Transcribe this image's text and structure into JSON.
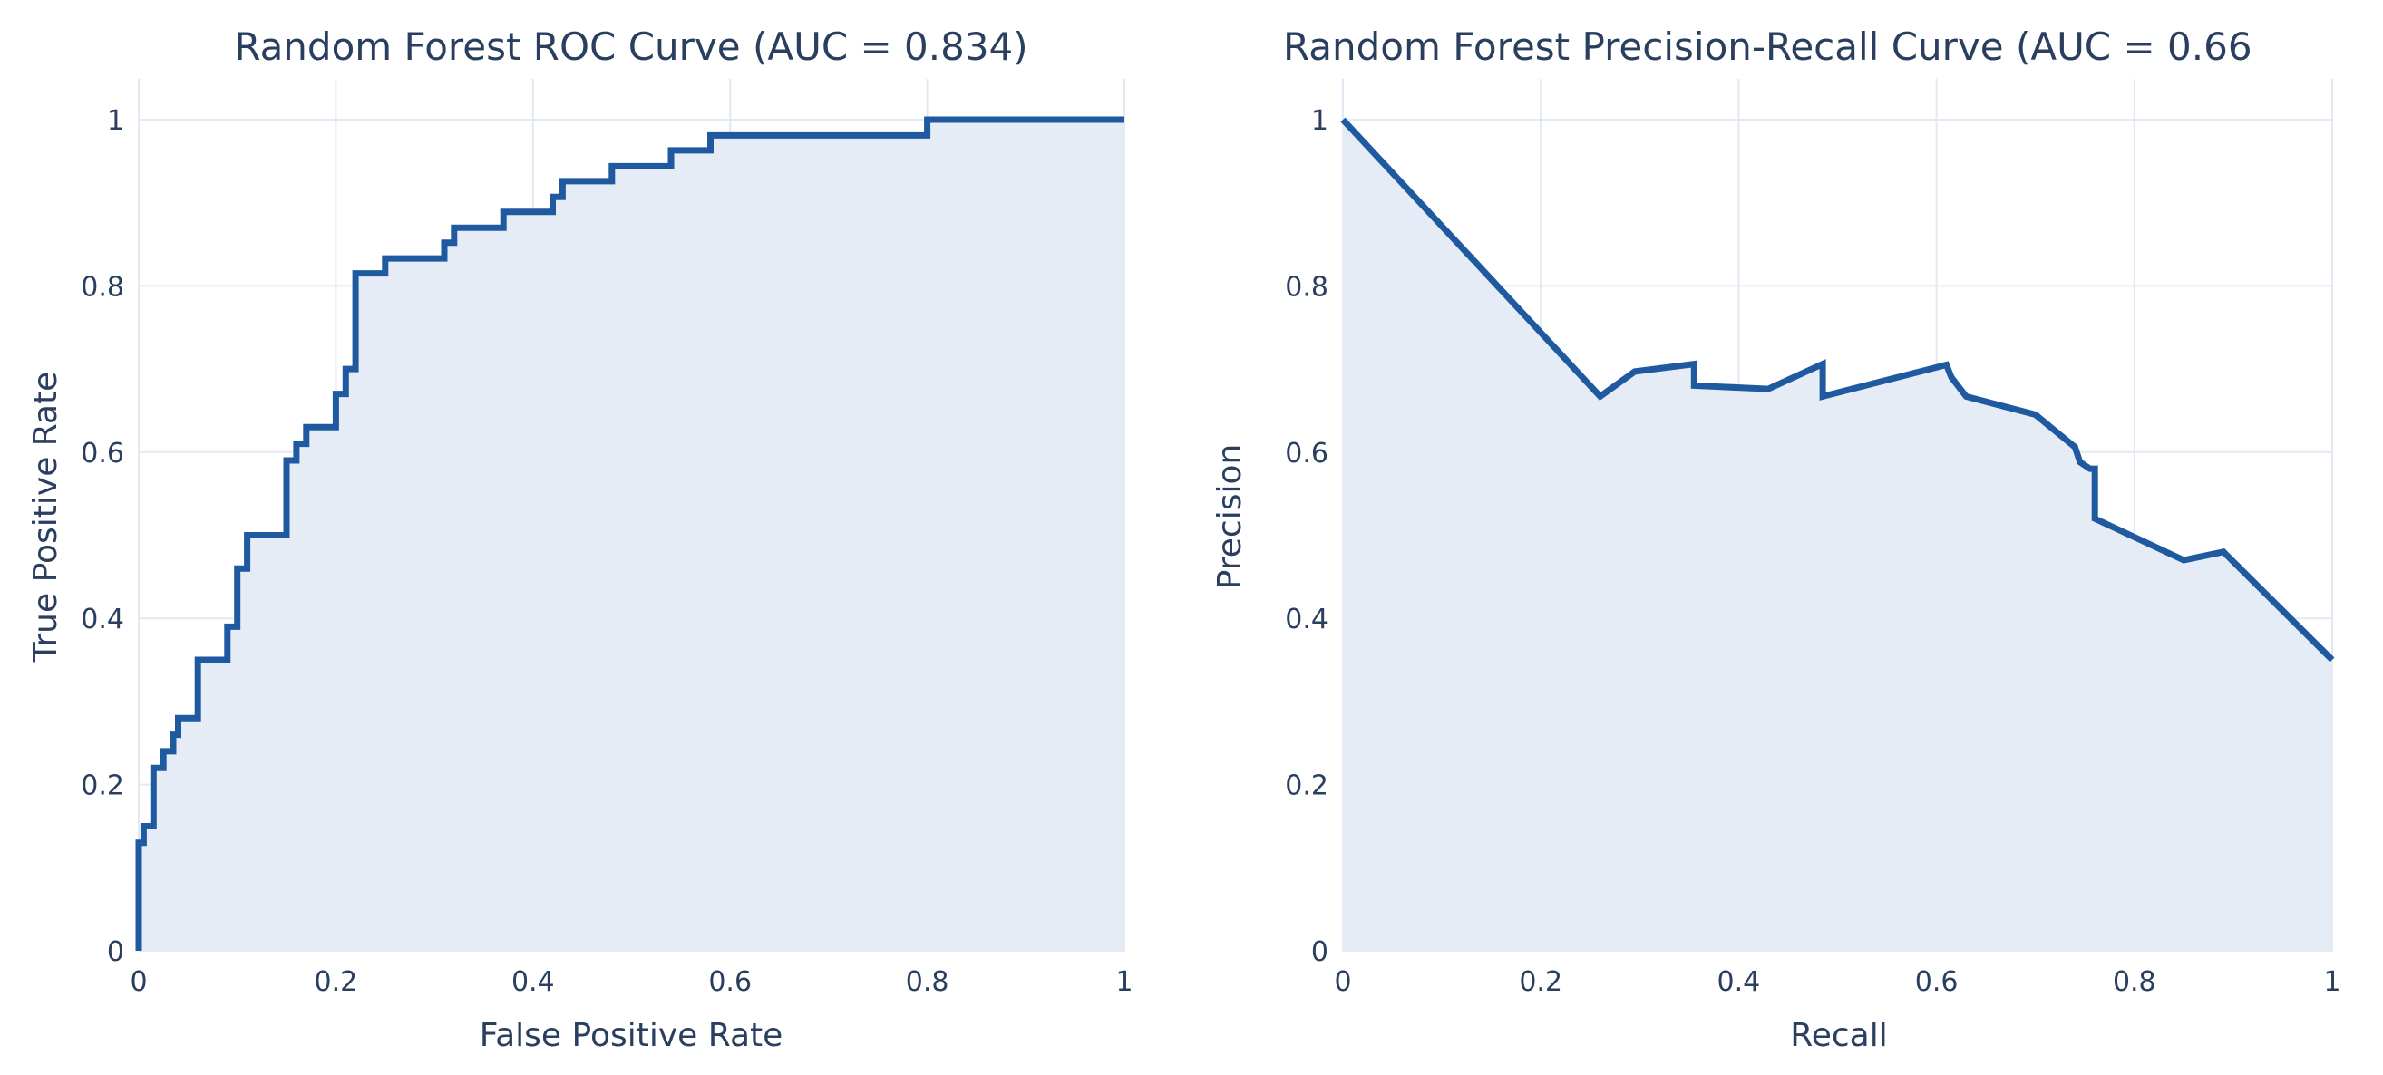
{
  "chart_data": [
    {
      "type": "area",
      "title": "Random Forest ROC Curve (AUC = 0.834)",
      "xlabel": "False Positive Rate",
      "ylabel": "True Positive Rate",
      "xlim": [
        0,
        1
      ],
      "ylim": [
        0,
        1
      ],
      "xticks": [
        0,
        0.2,
        0.4,
        0.6,
        0.8,
        1
      ],
      "yticks": [
        0,
        0.2,
        0.4,
        0.6,
        0.8,
        1
      ],
      "x_tick_labels": [
        "0",
        "0.2",
        "0.4",
        "0.6",
        "0.8",
        "1"
      ],
      "y_tick_labels": [
        "0",
        "0.2",
        "0.4",
        "0.6",
        "0.8",
        "1"
      ],
      "grid": true,
      "line_color": "#1f5aa0",
      "fill_color": "#e6ecf6",
      "x": [
        0,
        0,
        0.005,
        0.005,
        0.015,
        0.015,
        0.025,
        0.025,
        0.035,
        0.035,
        0.04,
        0.04,
        0.06,
        0.06,
        0.09,
        0.09,
        0.1,
        0.1,
        0.11,
        0.11,
        0.15,
        0.15,
        0.16,
        0.16,
        0.17,
        0.17,
        0.2,
        0.2,
        0.21,
        0.21,
        0.22,
        0.22,
        0.25,
        0.25,
        0.31,
        0.31,
        0.32,
        0.32,
        0.37,
        0.37,
        0.42,
        0.42,
        0.43,
        0.43,
        0.48,
        0.48,
        0.54,
        0.54,
        0.58,
        0.58,
        0.8,
        0.8,
        1
      ],
      "y": [
        0,
        0.13,
        0.13,
        0.15,
        0.15,
        0.22,
        0.22,
        0.24,
        0.24,
        0.26,
        0.26,
        0.28,
        0.28,
        0.35,
        0.35,
        0.39,
        0.39,
        0.46,
        0.46,
        0.5,
        0.5,
        0.59,
        0.59,
        0.61,
        0.61,
        0.63,
        0.63,
        0.67,
        0.67,
        0.7,
        0.7,
        0.815,
        0.815,
        0.833,
        0.833,
        0.852,
        0.852,
        0.87,
        0.87,
        0.889,
        0.889,
        0.907,
        0.907,
        0.926,
        0.926,
        0.944,
        0.944,
        0.963,
        0.963,
        0.981,
        0.981,
        1.0,
        1.0
      ]
    },
    {
      "type": "area",
      "title": "Random Forest Precision-Recall Curve (AUC = 0.66",
      "xlabel": "Recall",
      "ylabel": "Precision",
      "xlim": [
        0,
        1
      ],
      "ylim": [
        0,
        1
      ],
      "xticks": [
        0,
        0.2,
        0.4,
        0.6,
        0.8,
        1
      ],
      "yticks": [
        0,
        0.2,
        0.4,
        0.6,
        0.8,
        1
      ],
      "x_tick_labels": [
        "0",
        "0.2",
        "0.4",
        "0.6",
        "0.8",
        "1"
      ],
      "y_tick_labels": [
        "0",
        "0.2",
        "0.4",
        "0.6",
        "0.8",
        "1"
      ],
      "grid": true,
      "line_color": "#1f5aa0",
      "fill_color": "#e6ecf6",
      "x": [
        0,
        0.26,
        0.295,
        0.355,
        0.355,
        0.43,
        0.485,
        0.485,
        0.61,
        0.615,
        0.63,
        0.7,
        0.74,
        0.745,
        0.755,
        0.76,
        0.76,
        0.85,
        0.89,
        1.0
      ],
      "y": [
        1.0,
        0.667,
        0.697,
        0.706,
        0.68,
        0.676,
        0.706,
        0.667,
        0.705,
        0.69,
        0.667,
        0.645,
        0.606,
        0.588,
        0.58,
        0.58,
        0.52,
        0.47,
        0.48,
        0.35
      ]
    }
  ]
}
